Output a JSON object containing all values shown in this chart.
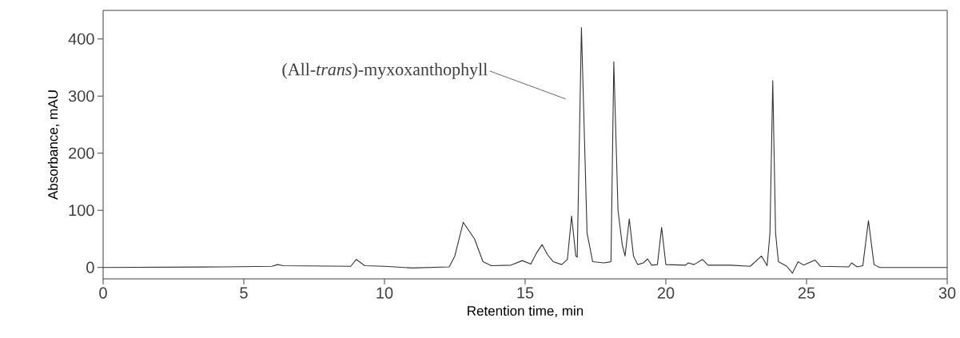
{
  "chart_data": {
    "type": "line",
    "xlabel": "Retention time, min",
    "ylabel": "Absorbance, mAU",
    "xlim": [
      0,
      30
    ],
    "ylim": [
      -20,
      450
    ],
    "xticks": [
      0,
      5,
      10,
      15,
      20,
      25,
      30
    ],
    "yticks": [
      0,
      100,
      200,
      300,
      400
    ],
    "grid": false,
    "legend": false,
    "marker": "none",
    "line_style": "solid",
    "annotations": [
      "(All-*trans*)-myxoxanthophyll"
    ],
    "series": [
      {
        "color": "#333333",
        "x": [
          0,
          4.3,
          6.0,
          6.2,
          6.4,
          8.8,
          9.0,
          9.3,
          10,
          11,
          12.3,
          12.5,
          12.8,
          13.2,
          13.5,
          13.8,
          14.5,
          14.9,
          15.2,
          15.4,
          15.6,
          15.8,
          16.0,
          16.3,
          16.5,
          16.65,
          16.8,
          16.85,
          17.0,
          17.2,
          17.4,
          17.8,
          18.05,
          18.15,
          18.3,
          18.45,
          18.55,
          18.7,
          18.85,
          19.0,
          19.2,
          19.35,
          19.5,
          19.7,
          19.85,
          20.0,
          20.7,
          20.8,
          21.0,
          21.3,
          21.5,
          22.3,
          23.0,
          23.4,
          23.6,
          23.7,
          23.8,
          23.9,
          24.0,
          24.3,
          24.5,
          24.7,
          24.9,
          25.3,
          25.5,
          26.5,
          26.6,
          26.8,
          27.0,
          27.2,
          27.4,
          27.6,
          30
        ],
        "values": [
          0,
          1,
          2,
          5,
          3,
          2,
          14,
          3,
          2,
          -1,
          1,
          20,
          79,
          50,
          10,
          3,
          4,
          12,
          6,
          25,
          40,
          22,
          10,
          5,
          14,
          90,
          20,
          18,
          420,
          60,
          10,
          8,
          10,
          360,
          100,
          40,
          20,
          85,
          20,
          5,
          8,
          15,
          4,
          5,
          70,
          5,
          4,
          8,
          5,
          14,
          4,
          4,
          2,
          20,
          3,
          60,
          327,
          60,
          10,
          2,
          -10,
          10,
          4,
          13,
          2,
          1,
          8,
          1,
          3,
          82,
          5,
          0,
          0
        ]
      }
    ]
  }
}
